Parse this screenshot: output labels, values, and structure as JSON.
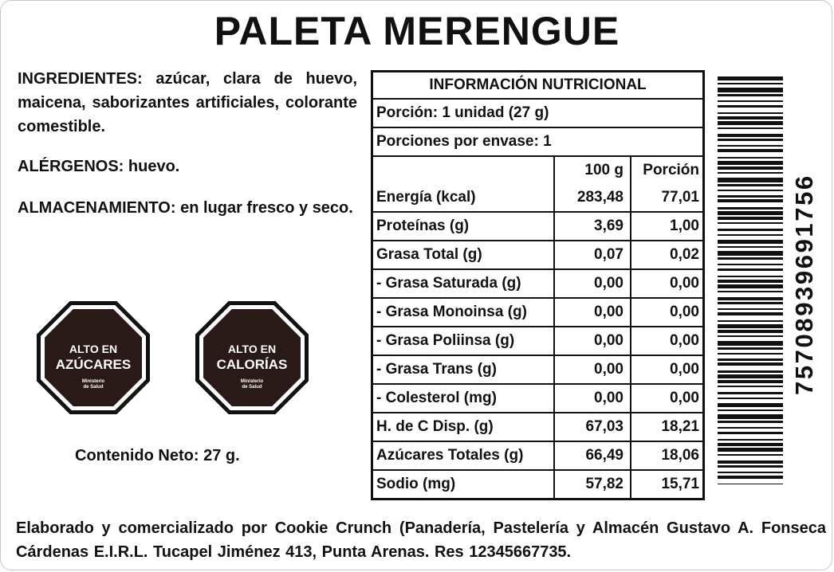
{
  "product": {
    "title": "PALETA MERENGUE"
  },
  "info": {
    "ingredients_label": "INGREDIENTES:",
    "ingredients_text": " azúcar, clara de huevo, maicena, saborizantes artificiales, colorante comestible.",
    "allergens_label": "ALÉRGENOS:",
    "allergens_text": " huevo.",
    "storage_label": "ALMACENAMIENTO:",
    "storage_text": " en lugar fresco y seco."
  },
  "seals": [
    {
      "line1": "ALTO EN",
      "line2": "AZÚCARES",
      "ministry_1": "Ministerio",
      "ministry_2": "de Salud"
    },
    {
      "line1": "ALTO EN",
      "line2": "CALORÍAS",
      "ministry_1": "Ministerio",
      "ministry_2": "de Salud"
    }
  ],
  "net_content": "Contenido Neto: 27 g.",
  "nutrition": {
    "title": "INFORMACIÓN NUTRICIONAL",
    "serving": "Porción: 1 unidad (27 g)",
    "servings_per_pack": "Porciones por envase: 1",
    "col_100g": "100 g",
    "col_portion": "Porción",
    "rows": [
      {
        "name": "Energía (kcal)",
        "per100": "283,48",
        "portion": "77,01"
      },
      {
        "name": "Proteínas (g)",
        "per100": "3,69",
        "portion": "1,00"
      },
      {
        "name": "Grasa Total (g)",
        "per100": "0,07",
        "portion": "0,02"
      },
      {
        "name": "- Grasa Saturada (g)",
        "per100": "0,00",
        "portion": "0,00"
      },
      {
        "name": "- Grasa Monoinsa (g)",
        "per100": "0,00",
        "portion": "0,00"
      },
      {
        "name": "- Grasa Poliinsa (g)",
        "per100": "0,00",
        "portion": "0,00"
      },
      {
        "name": "- Grasa Trans (g)",
        "per100": "0,00",
        "portion": "0,00"
      },
      {
        "name": "- Colesterol (mg)",
        "per100": "0,00",
        "portion": "0,00"
      },
      {
        "name": "H. de C Disp. (g)",
        "per100": "67,03",
        "portion": "18,21"
      },
      {
        "name": "Azúcares Totales (g)",
        "per100": "66,49",
        "portion": "18,06"
      },
      {
        "name": "Sodio (mg)",
        "per100": "57,82",
        "portion": "15,71"
      }
    ]
  },
  "barcode": {
    "digits": "7570893969175​6"
  },
  "footer": {
    "text": "Elaborado y comercializado por Cookie Crunch (Panadería, Pastelería y Almacén Gustavo A. Fonseca Cárdenas E.I.R.L. Tucapel Jiménez 413, Punta Arenas. Res 12345667735."
  },
  "colors": {
    "seal_fill": "#2a1a17",
    "ink": "#111111"
  }
}
